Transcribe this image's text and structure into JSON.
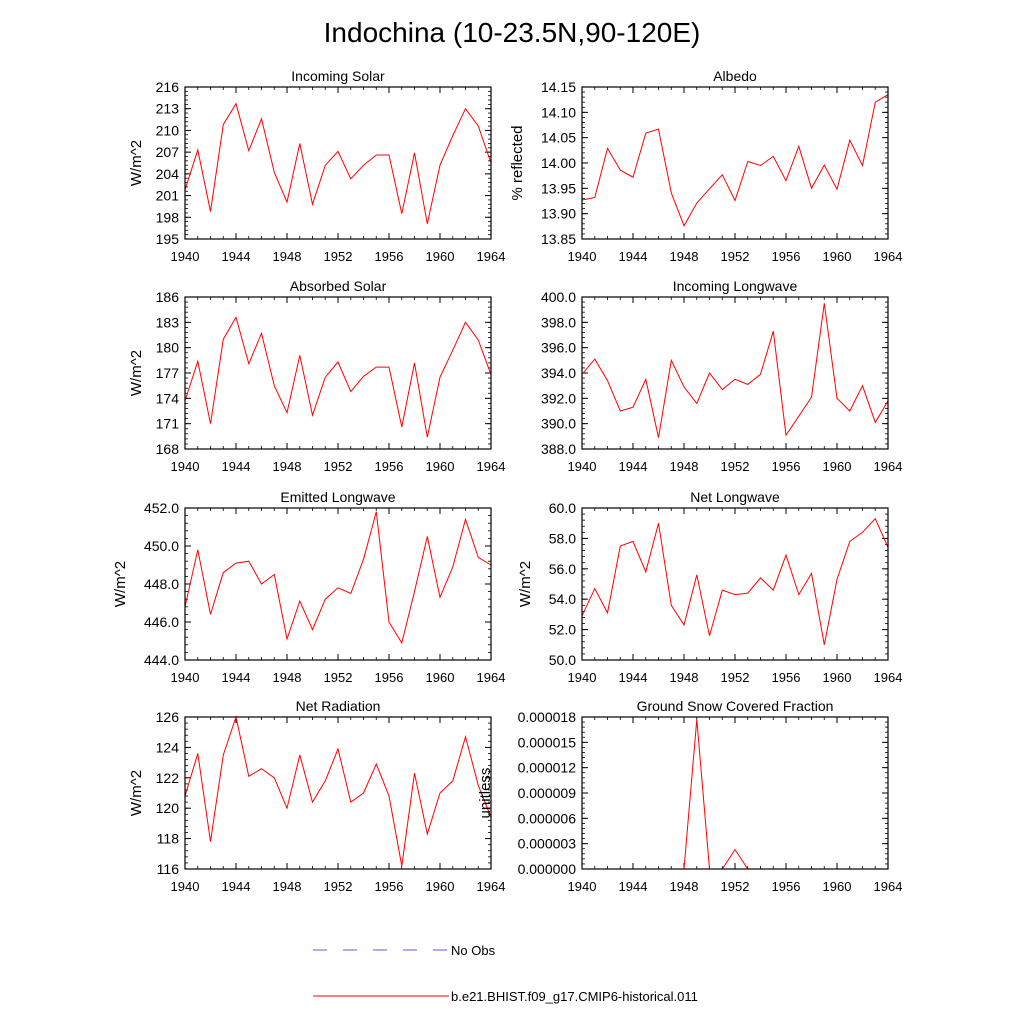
{
  "figure": {
    "title": "Indochina (10-23.5N,90-120E)"
  },
  "legend": {
    "obs_label": "No Obs",
    "model_label": "b.e21.BHIST.f09_g17.CMIP6-historical.011",
    "obs_color": "#5b5bd6",
    "model_color": "#ff0000"
  },
  "chart_data": [
    {
      "type": "line",
      "title": "Incoming Solar",
      "ylabel": "W/m^2",
      "xlim": [
        1940,
        1964
      ],
      "ylim": [
        195,
        216
      ],
      "xticks": [
        1940,
        1944,
        1948,
        1952,
        1956,
        1960,
        1964
      ],
      "yticks": [
        195,
        198,
        201,
        204,
        207,
        210,
        213,
        216
      ],
      "ytick_labels": [
        "195",
        "198",
        "201",
        "204",
        "207",
        "210",
        "213",
        "216"
      ],
      "x": [
        1940,
        1941,
        1942,
        1943,
        1944,
        1945,
        1946,
        1947,
        1948,
        1949,
        1950,
        1951,
        1952,
        1953,
        1954,
        1955,
        1956,
        1957,
        1958,
        1959,
        1960,
        1961,
        1962,
        1963,
        1964
      ],
      "series": [
        {
          "values": [
            201.8,
            207.3,
            198.8,
            210.8,
            213.7,
            207.2,
            211.6,
            204.2,
            200.1,
            208.2,
            199.8,
            205.2,
            207.1,
            203.3,
            205.2,
            206.6,
            206.6,
            198.5,
            206.9,
            197.1,
            205.2,
            209.3,
            213.0,
            210.6,
            205.5
          ]
        }
      ]
    },
    {
      "type": "line",
      "title": "Albedo",
      "ylabel": "% reflected",
      "xlim": [
        1940,
        1964
      ],
      "ylim": [
        13.85,
        14.15
      ],
      "xticks": [
        1940,
        1944,
        1948,
        1952,
        1956,
        1960,
        1964
      ],
      "yticks": [
        13.85,
        13.9,
        13.95,
        14.0,
        14.05,
        14.1,
        14.15
      ],
      "ytick_labels": [
        "13.85",
        "13.90",
        "13.95",
        "14.00",
        "14.05",
        "14.10",
        "14.15"
      ],
      "x": [
        1940,
        1941,
        1942,
        1943,
        1944,
        1945,
        1946,
        1947,
        1948,
        1949,
        1950,
        1951,
        1952,
        1953,
        1954,
        1955,
        1956,
        1957,
        1958,
        1959,
        1960,
        1961,
        1962,
        1963,
        1964
      ],
      "series": [
        {
          "values": [
            13.927,
            13.932,
            14.029,
            13.986,
            13.972,
            14.059,
            14.067,
            13.941,
            13.876,
            13.921,
            13.949,
            13.977,
            13.926,
            14.003,
            13.995,
            14.013,
            13.965,
            14.033,
            13.95,
            13.996,
            13.948,
            14.045,
            13.995,
            14.12,
            14.135
          ]
        }
      ]
    },
    {
      "type": "line",
      "title": "Absorbed Solar",
      "ylabel": "W/m^2",
      "xlim": [
        1940,
        1964
      ],
      "ylim": [
        168,
        186
      ],
      "xticks": [
        1940,
        1944,
        1948,
        1952,
        1956,
        1960,
        1964
      ],
      "yticks": [
        168,
        171,
        174,
        177,
        180,
        183,
        186
      ],
      "ytick_labels": [
        "168",
        "171",
        "174",
        "177",
        "180",
        "183",
        "186"
      ],
      "x": [
        1940,
        1941,
        1942,
        1943,
        1944,
        1945,
        1946,
        1947,
        1948,
        1949,
        1950,
        1951,
        1952,
        1953,
        1954,
        1955,
        1956,
        1957,
        1958,
        1959,
        1960,
        1961,
        1962,
        1963,
        1964
      ],
      "series": [
        {
          "values": [
            173.7,
            178.4,
            171.0,
            181.0,
            183.6,
            178.1,
            181.7,
            175.5,
            172.3,
            179.1,
            172.0,
            176.5,
            178.3,
            174.8,
            176.6,
            177.7,
            177.7,
            170.6,
            178.2,
            169.4,
            176.5,
            179.7,
            183.0,
            180.9,
            176.8
          ]
        }
      ]
    },
    {
      "type": "line",
      "title": "Incoming Longwave",
      "ylabel": "",
      "xlim": [
        1940,
        1964
      ],
      "ylim": [
        388.0,
        400.0
      ],
      "xticks": [
        1940,
        1944,
        1948,
        1952,
        1956,
        1960,
        1964
      ],
      "yticks": [
        388.0,
        390.0,
        392.0,
        394.0,
        396.0,
        398.0,
        400.0
      ],
      "ytick_labels": [
        "388.0",
        "390.0",
        "392.0",
        "394.0",
        "396.0",
        "398.0",
        "400.0"
      ],
      "x": [
        1940,
        1941,
        1942,
        1943,
        1944,
        1945,
        1946,
        1947,
        1948,
        1949,
        1950,
        1951,
        1952,
        1953,
        1954,
        1955,
        1956,
        1957,
        1958,
        1959,
        1960,
        1961,
        1962,
        1963,
        1964
      ],
      "series": [
        {
          "values": [
            393.9,
            395.1,
            393.4,
            391.0,
            391.3,
            393.5,
            388.9,
            395.0,
            392.9,
            391.6,
            394.0,
            392.7,
            393.5,
            393.1,
            393.9,
            397.3,
            389.1,
            390.6,
            392.1,
            399.5,
            392.0,
            391.0,
            393.0,
            390.1,
            391.8
          ]
        }
      ]
    },
    {
      "type": "line",
      "title": "Emitted Longwave",
      "ylabel": "W/m^2",
      "xlim": [
        1940,
        1964
      ],
      "ylim": [
        444.0,
        452.0
      ],
      "xticks": [
        1940,
        1944,
        1948,
        1952,
        1956,
        1960,
        1964
      ],
      "yticks": [
        444.0,
        446.0,
        448.0,
        450.0,
        452.0
      ],
      "ytick_labels": [
        "444.0",
        "446.0",
        "448.0",
        "450.0",
        "452.0"
      ],
      "x": [
        1940,
        1941,
        1942,
        1943,
        1944,
        1945,
        1946,
        1947,
        1948,
        1949,
        1950,
        1951,
        1952,
        1953,
        1954,
        1955,
        1956,
        1957,
        1958,
        1959,
        1960,
        1961,
        1962,
        1963,
        1964
      ],
      "series": [
        {
          "values": [
            446.8,
            449.8,
            446.4,
            448.6,
            449.1,
            449.2,
            448.0,
            448.5,
            445.1,
            447.1,
            445.6,
            447.2,
            447.8,
            447.5,
            449.3,
            451.8,
            446.0,
            444.9,
            447.6,
            450.5,
            447.3,
            448.9,
            451.4,
            449.4,
            449.0
          ]
        }
      ]
    },
    {
      "type": "line",
      "title": "Net Longwave",
      "ylabel": "W/m^2",
      "xlim": [
        1940,
        1964
      ],
      "ylim": [
        50.0,
        60.0
      ],
      "xticks": [
        1940,
        1944,
        1948,
        1952,
        1956,
        1960,
        1964
      ],
      "yticks": [
        50.0,
        52.0,
        54.0,
        56.0,
        58.0,
        60.0
      ],
      "ytick_labels": [
        "50.0",
        "52.0",
        "54.0",
        "56.0",
        "58.0",
        "60.0"
      ],
      "x": [
        1940,
        1941,
        1942,
        1943,
        1944,
        1945,
        1946,
        1947,
        1948,
        1949,
        1950,
        1951,
        1952,
        1953,
        1954,
        1955,
        1956,
        1957,
        1958,
        1959,
        1960,
        1961,
        1962,
        1963,
        1964
      ],
      "series": [
        {
          "values": [
            52.9,
            54.7,
            53.1,
            57.5,
            57.8,
            55.8,
            59.0,
            53.6,
            52.3,
            55.6,
            51.6,
            54.6,
            54.3,
            54.4,
            55.4,
            54.6,
            56.9,
            54.3,
            55.7,
            51.0,
            55.3,
            57.8,
            58.4,
            59.3,
            57.4
          ]
        }
      ]
    },
    {
      "type": "line",
      "title": "Net Radiation",
      "ylabel": "W/m^2",
      "xlim": [
        1940,
        1964
      ],
      "ylim": [
        116,
        126
      ],
      "xticks": [
        1940,
        1944,
        1948,
        1952,
        1956,
        1960,
        1964
      ],
      "yticks": [
        116,
        118,
        120,
        122,
        124,
        126
      ],
      "ytick_labels": [
        "116",
        "118",
        "120",
        "122",
        "124",
        "126"
      ],
      "x": [
        1940,
        1941,
        1942,
        1943,
        1944,
        1945,
        1946,
        1947,
        1948,
        1949,
        1950,
        1951,
        1952,
        1953,
        1954,
        1955,
        1956,
        1957,
        1958,
        1959,
        1960,
        1961,
        1962,
        1963,
        1964
      ],
      "series": [
        {
          "values": [
            120.8,
            123.6,
            117.8,
            123.5,
            126.0,
            122.1,
            122.6,
            122.0,
            120.0,
            123.5,
            120.4,
            121.8,
            123.9,
            120.4,
            121.0,
            122.9,
            120.8,
            116.2,
            122.3,
            118.3,
            121.0,
            121.8,
            124.7,
            121.5,
            119.4
          ]
        }
      ]
    },
    {
      "type": "line",
      "title": "Ground Snow Covered Fraction",
      "ylabel": "unitless",
      "xlim": [
        1940,
        1964
      ],
      "ylim": [
        0,
        1.8e-05
      ],
      "xticks": [
        1940,
        1944,
        1948,
        1952,
        1956,
        1960,
        1964
      ],
      "yticks": [
        0,
        3e-06,
        6e-06,
        9e-06,
        1.2e-05,
        1.5e-05,
        1.8e-05
      ],
      "ytick_labels": [
        "0.000000",
        "0.000003",
        "0.000006",
        "0.000009",
        "0.000012",
        "0.000015",
        "0.000018"
      ],
      "x": [
        1940,
        1941,
        1942,
        1943,
        1944,
        1945,
        1946,
        1947,
        1948,
        1949,
        1950,
        1951,
        1952,
        1953,
        1954,
        1955,
        1956,
        1957,
        1958,
        1959,
        1960,
        1961,
        1962,
        1963,
        1964
      ],
      "series": [
        {
          "values": [
            0,
            0,
            0,
            0,
            0,
            0,
            0,
            0,
            0,
            1.77e-05,
            0,
            0,
            2.3e-06,
            0,
            0,
            0,
            0,
            0,
            0,
            0,
            0,
            0,
            0,
            0,
            0
          ]
        }
      ]
    }
  ]
}
